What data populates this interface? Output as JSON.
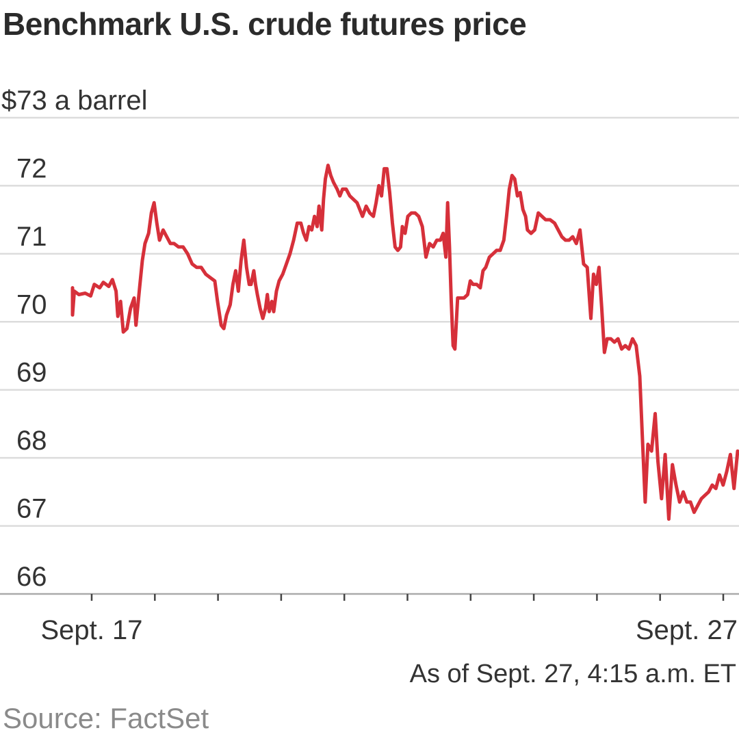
{
  "title": "Benchmark U.S. crude futures price",
  "note": "As of Sept. 27, 4:15 a.m. ET",
  "source": "Source: FactSet",
  "colors": {
    "line": "#d6303a",
    "grid": "#dcdcdc",
    "baseline": "#aaaaaa"
  },
  "chart_data": {
    "type": "line",
    "title": "Benchmark U.S. crude futures price",
    "ylabel": "$73 a barrel",
    "ylim": [
      66,
      73
    ],
    "y_ticks": [
      {
        "value": 73,
        "label": "$73 a barrel"
      },
      {
        "value": 72,
        "label": "72"
      },
      {
        "value": 71,
        "label": "71"
      },
      {
        "value": 70,
        "label": "70"
      },
      {
        "value": 69,
        "label": "69"
      },
      {
        "value": 68,
        "label": "68"
      },
      {
        "value": 67,
        "label": "67"
      },
      {
        "value": 66,
        "label": "66"
      }
    ],
    "x_labels": [
      {
        "value": 0,
        "label": "Sept. 17"
      },
      {
        "value": 1,
        "label": ""
      },
      {
        "value": 2,
        "label": ""
      },
      {
        "value": 3,
        "label": ""
      },
      {
        "value": 4,
        "label": ""
      },
      {
        "value": 5,
        "label": ""
      },
      {
        "value": 6,
        "label": ""
      },
      {
        "value": 7,
        "label": ""
      },
      {
        "value": 8,
        "label": ""
      },
      {
        "value": 9,
        "label": ""
      },
      {
        "value": 10,
        "label": "Sept. 27"
      }
    ],
    "xlim": [
      -0.22,
      10.15
    ],
    "grid": true,
    "series": [
      {
        "values": [
          [
            -0.22,
            70.5
          ],
          [
            -0.22,
            70.1
          ],
          [
            -0.2,
            70.45
          ],
          [
            -0.15,
            70.4
          ],
          [
            -0.08,
            70.42
          ],
          [
            -0.02,
            70.38
          ],
          [
            0.02,
            70.55
          ],
          [
            0.08,
            70.5
          ],
          [
            0.12,
            70.58
          ],
          [
            0.18,
            70.52
          ],
          [
            0.22,
            70.62
          ],
          [
            0.26,
            70.45
          ],
          [
            0.28,
            70.08
          ],
          [
            0.31,
            70.3
          ],
          [
            0.34,
            69.85
          ],
          [
            0.38,
            69.9
          ],
          [
            0.42,
            70.2
          ],
          [
            0.46,
            70.35
          ],
          [
            0.48,
            69.95
          ],
          [
            0.52,
            70.5
          ],
          [
            0.55,
            70.9
          ],
          [
            0.58,
            71.15
          ],
          [
            0.62,
            71.3
          ],
          [
            0.65,
            71.6
          ],
          [
            0.68,
            71.75
          ],
          [
            0.71,
            71.45
          ],
          [
            0.74,
            71.2
          ],
          [
            0.78,
            71.35
          ],
          [
            0.82,
            71.25
          ],
          [
            0.86,
            71.15
          ],
          [
            0.9,
            71.15
          ],
          [
            0.95,
            71.1
          ],
          [
            1.0,
            71.1
          ],
          [
            1.05,
            71.0
          ],
          [
            1.1,
            70.85
          ],
          [
            1.15,
            70.8
          ],
          [
            1.2,
            70.8
          ],
          [
            1.25,
            70.7
          ],
          [
            1.3,
            70.65
          ],
          [
            1.35,
            70.6
          ],
          [
            1.38,
            70.3
          ],
          [
            1.42,
            69.95
          ],
          [
            1.45,
            69.9
          ],
          [
            1.48,
            70.1
          ],
          [
            1.52,
            70.25
          ],
          [
            1.55,
            70.55
          ],
          [
            1.58,
            70.75
          ],
          [
            1.61,
            70.45
          ],
          [
            1.64,
            70.9
          ],
          [
            1.67,
            71.2
          ],
          [
            1.7,
            70.8
          ],
          [
            1.73,
            70.55
          ],
          [
            1.75,
            70.55
          ],
          [
            1.78,
            70.75
          ],
          [
            1.8,
            70.55
          ],
          [
            1.82,
            70.4
          ],
          [
            1.85,
            70.2
          ],
          [
            1.88,
            70.05
          ],
          [
            1.91,
            70.2
          ],
          [
            1.93,
            70.4
          ],
          [
            1.95,
            70.15
          ],
          [
            1.98,
            70.3
          ],
          [
            2.0,
            70.15
          ],
          [
            2.03,
            70.45
          ],
          [
            2.06,
            70.6
          ],
          [
            2.1,
            70.7
          ],
          [
            2.14,
            70.85
          ],
          [
            2.18,
            71.0
          ],
          [
            2.22,
            71.2
          ],
          [
            2.26,
            71.45
          ],
          [
            2.3,
            71.45
          ],
          [
            2.33,
            71.3
          ],
          [
            2.36,
            71.2
          ],
          [
            2.39,
            71.4
          ],
          [
            2.42,
            71.35
          ],
          [
            2.45,
            71.55
          ],
          [
            2.48,
            71.4
          ],
          [
            2.5,
            71.7
          ],
          [
            2.53,
            71.35
          ],
          [
            2.55,
            71.8
          ],
          [
            2.57,
            72.1
          ],
          [
            2.6,
            72.3
          ],
          [
            2.63,
            72.15
          ],
          [
            2.66,
            72.05
          ],
          [
            2.7,
            71.95
          ],
          [
            2.73,
            71.85
          ],
          [
            2.76,
            71.95
          ],
          [
            2.8,
            71.95
          ],
          [
            2.84,
            71.85
          ],
          [
            2.88,
            71.8
          ],
          [
            2.92,
            71.75
          ],
          [
            2.95,
            71.65
          ],
          [
            2.98,
            71.55
          ],
          [
            3.02,
            71.7
          ],
          [
            3.06,
            71.6
          ],
          [
            3.1,
            71.55
          ],
          [
            3.13,
            71.75
          ],
          [
            3.16,
            72.0
          ],
          [
            3.19,
            71.85
          ],
          [
            3.22,
            72.25
          ],
          [
            3.25,
            72.25
          ],
          [
            3.28,
            71.9
          ],
          [
            3.31,
            71.45
          ],
          [
            3.34,
            71.1
          ],
          [
            3.37,
            71.05
          ],
          [
            3.4,
            71.1
          ],
          [
            3.42,
            71.4
          ],
          [
            3.45,
            71.3
          ],
          [
            3.48,
            71.55
          ],
          [
            3.52,
            71.6
          ],
          [
            3.56,
            71.6
          ],
          [
            3.6,
            71.55
          ],
          [
            3.64,
            71.4
          ],
          [
            3.68,
            70.95
          ],
          [
            3.72,
            71.15
          ],
          [
            3.76,
            71.1
          ],
          [
            3.8,
            71.2
          ],
          [
            3.84,
            71.2
          ],
          [
            3.87,
            71.3
          ],
          [
            3.9,
            70.95
          ],
          [
            3.92,
            71.75
          ],
          [
            3.94,
            71.1
          ],
          [
            3.96,
            70.3
          ],
          [
            3.98,
            69.65
          ],
          [
            4.0,
            69.6
          ],
          [
            4.03,
            70.35
          ],
          [
            4.06,
            70.35
          ],
          [
            4.1,
            70.35
          ],
          [
            4.14,
            70.4
          ],
          [
            4.17,
            70.6
          ],
          [
            4.2,
            70.55
          ],
          [
            4.24,
            70.55
          ],
          [
            4.28,
            70.5
          ],
          [
            4.31,
            70.75
          ],
          [
            4.34,
            70.8
          ],
          [
            4.38,
            70.95
          ],
          [
            4.42,
            71.0
          ],
          [
            4.46,
            71.05
          ],
          [
            4.5,
            71.05
          ],
          [
            4.54,
            71.2
          ],
          [
            4.57,
            71.55
          ],
          [
            4.6,
            71.95
          ],
          [
            4.63,
            72.15
          ],
          [
            4.66,
            72.1
          ],
          [
            4.69,
            71.85
          ],
          [
            4.72,
            71.9
          ],
          [
            4.75,
            71.65
          ],
          [
            4.78,
            71.55
          ],
          [
            4.8,
            71.35
          ],
          [
            4.84,
            71.3
          ],
          [
            4.88,
            71.35
          ],
          [
            4.92,
            71.6
          ],
          [
            4.96,
            71.55
          ],
          [
            5.0,
            71.5
          ],
          [
            5.05,
            71.5
          ],
          [
            5.1,
            71.45
          ],
          [
            5.14,
            71.35
          ],
          [
            5.18,
            71.25
          ],
          [
            5.22,
            71.2
          ],
          [
            5.26,
            71.2
          ],
          [
            5.3,
            71.25
          ],
          [
            5.34,
            71.15
          ],
          [
            5.38,
            71.35
          ],
          [
            5.42,
            70.85
          ],
          [
            5.46,
            70.8
          ],
          [
            5.5,
            70.05
          ],
          [
            5.53,
            70.7
          ],
          [
            5.56,
            70.55
          ],
          [
            5.59,
            70.8
          ],
          [
            5.62,
            70.2
          ],
          [
            5.65,
            69.55
          ],
          [
            5.68,
            69.75
          ],
          [
            5.72,
            69.75
          ],
          [
            5.76,
            69.7
          ],
          [
            5.8,
            69.75
          ],
          [
            5.84,
            69.6
          ],
          [
            5.88,
            69.65
          ],
          [
            5.92,
            69.6
          ],
          [
            5.96,
            69.75
          ],
          [
            6.0,
            69.65
          ],
          [
            6.04,
            69.2
          ],
          [
            6.07,
            68.25
          ],
          [
            6.1,
            67.35
          ],
          [
            6.13,
            68.2
          ],
          [
            6.17,
            68.1
          ],
          [
            6.21,
            68.65
          ],
          [
            6.24,
            67.95
          ],
          [
            6.28,
            67.4
          ],
          [
            6.32,
            68.05
          ],
          [
            6.36,
            67.1
          ],
          [
            6.4,
            67.9
          ],
          [
            6.44,
            67.6
          ],
          [
            6.48,
            67.35
          ],
          [
            6.52,
            67.5
          ],
          [
            6.56,
            67.35
          ],
          [
            6.6,
            67.35
          ],
          [
            6.64,
            67.2
          ],
          [
            6.68,
            67.3
          ],
          [
            6.72,
            67.4
          ],
          [
            6.76,
            67.45
          ],
          [
            6.8,
            67.5
          ],
          [
            6.84,
            67.6
          ],
          [
            6.88,
            67.55
          ],
          [
            6.92,
            67.75
          ],
          [
            6.96,
            67.6
          ],
          [
            7.0,
            67.8
          ],
          [
            7.04,
            68.05
          ],
          [
            7.08,
            67.55
          ],
          [
            7.12,
            68.1
          ]
        ]
      }
    ]
  }
}
